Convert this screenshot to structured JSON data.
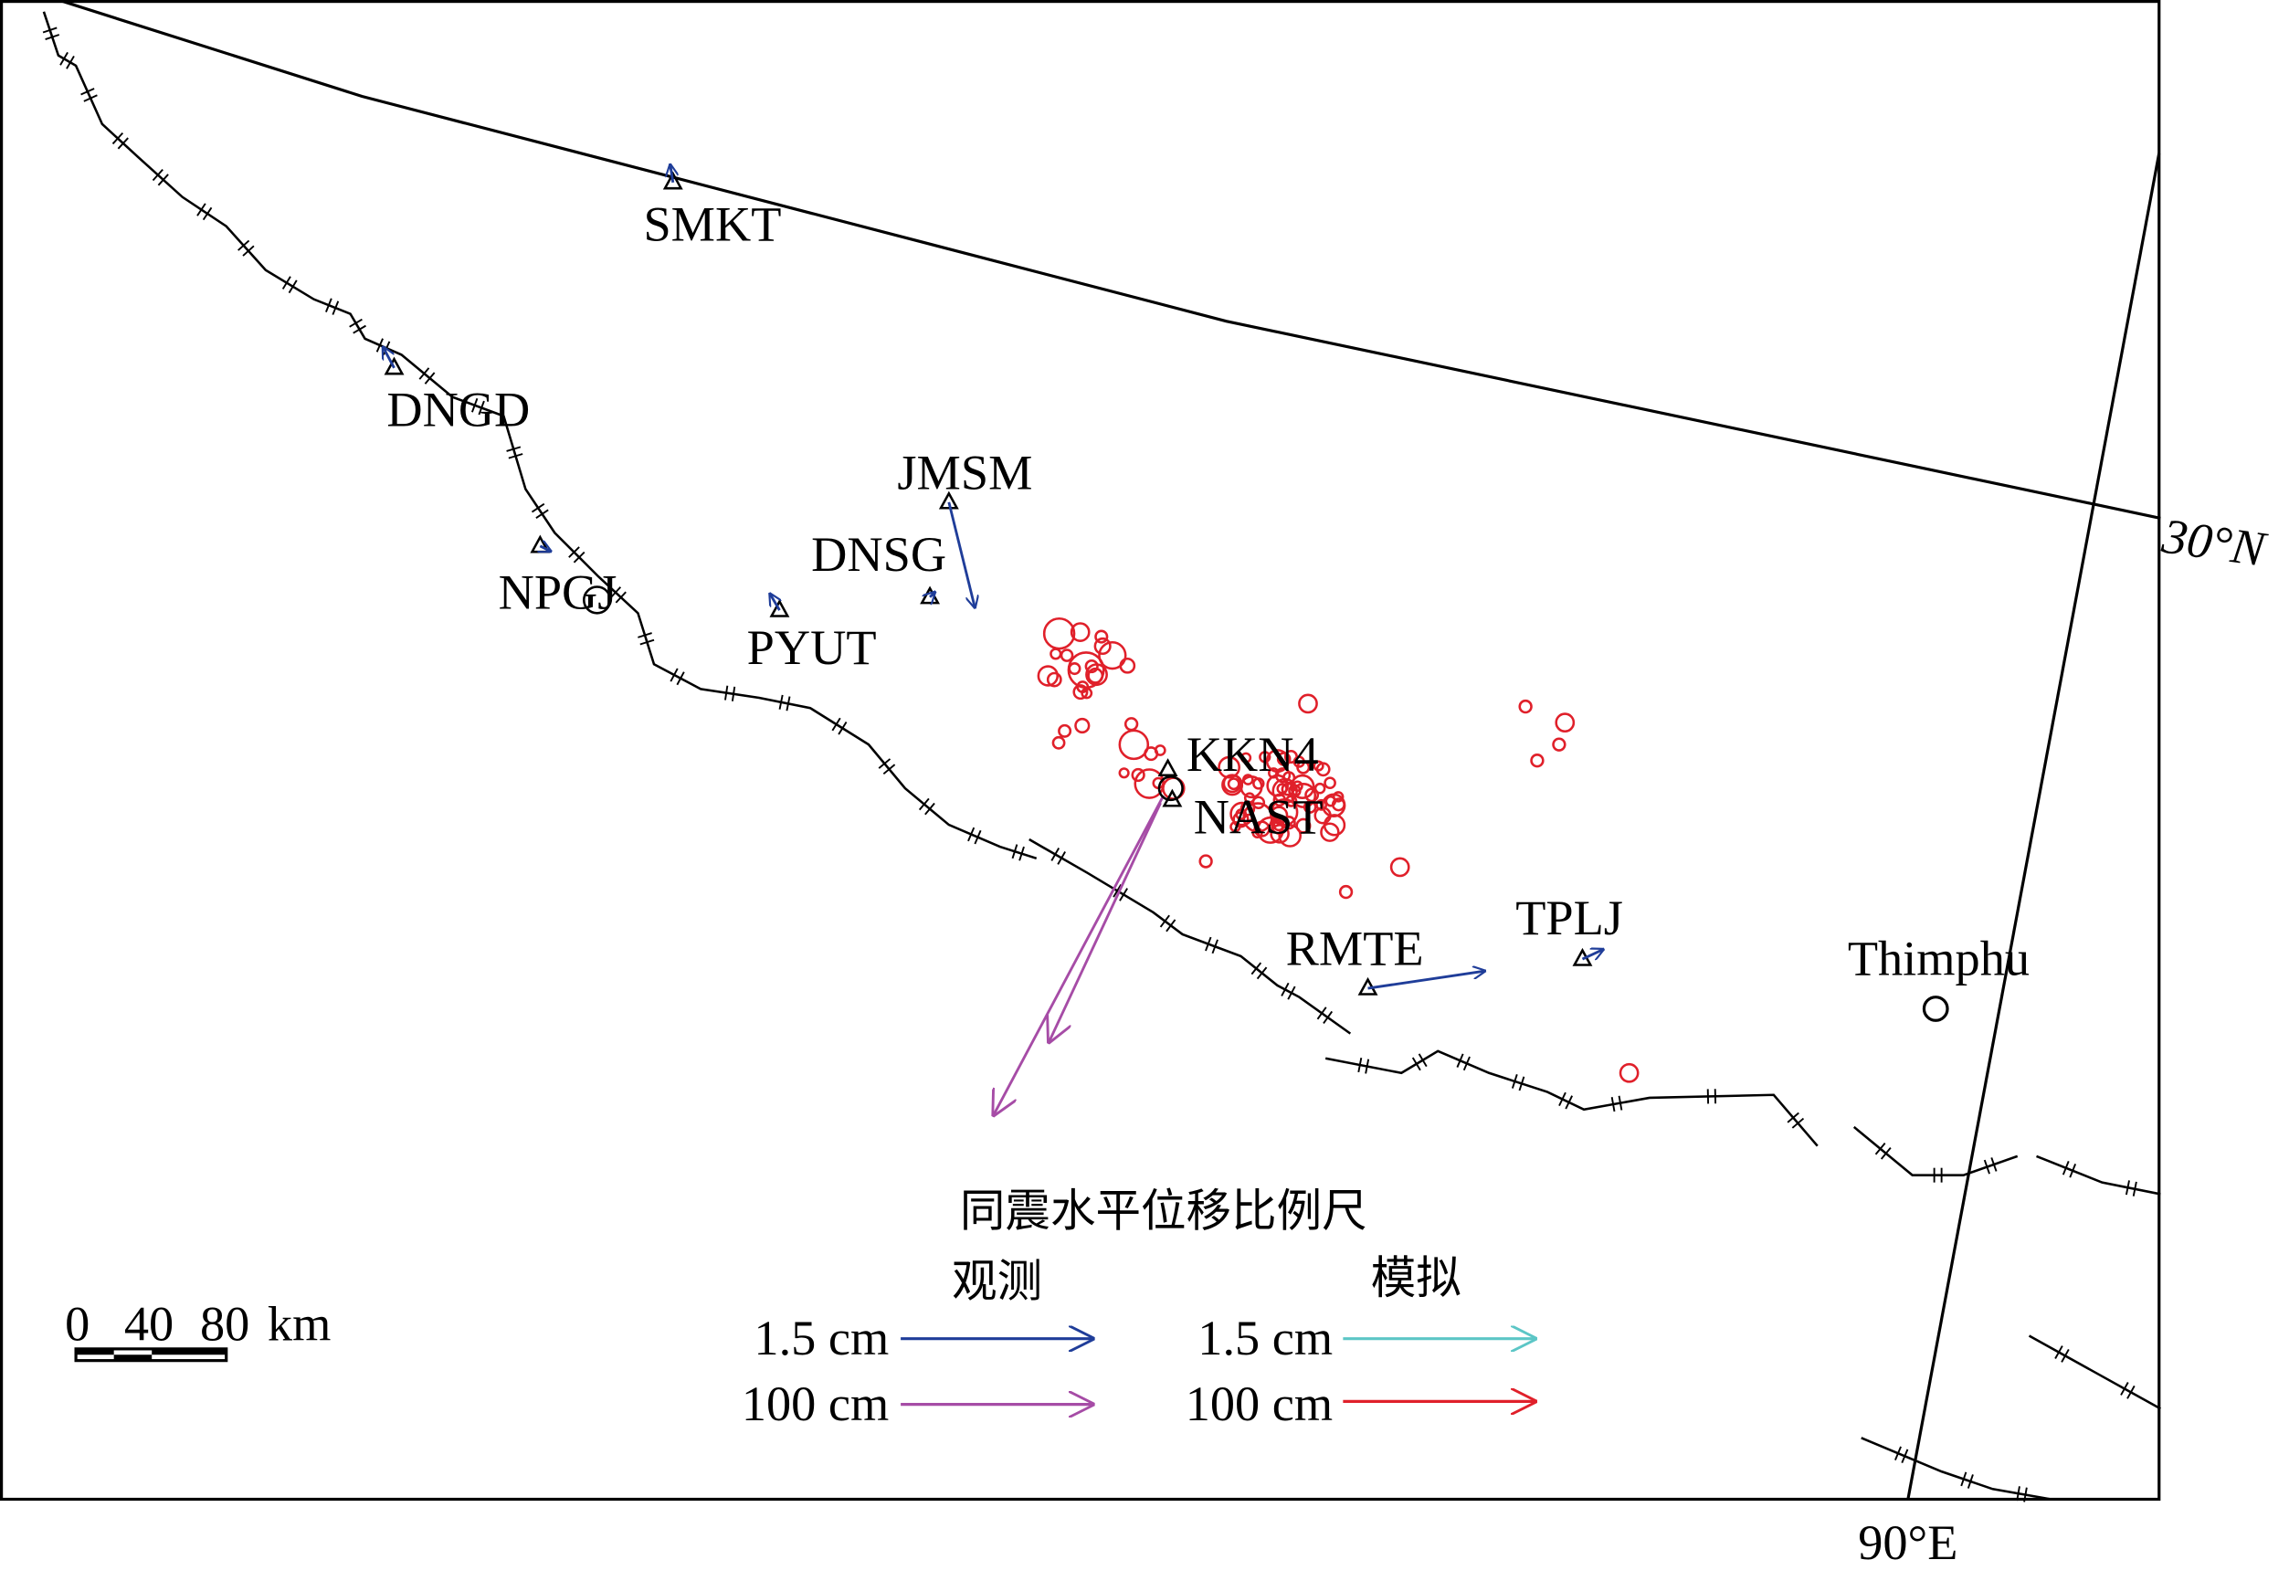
{
  "graticule": {
    "lat": "30°N",
    "lon": "90°E"
  },
  "stations": [
    {
      "label": "SMKT"
    },
    {
      "label": "DNGD"
    },
    {
      "label": "NPGJ"
    },
    {
      "label": "PYUT"
    },
    {
      "label": "DNSG"
    },
    {
      "label": "JMSM"
    },
    {
      "label": "KKN4"
    },
    {
      "label": "NAST"
    },
    {
      "label": "RMTE"
    },
    {
      "label": "TPLJ"
    }
  ],
  "cities": [
    {
      "label": "Thimphu"
    }
  ],
  "legend": {
    "title": "同震水平位移比例尺",
    "observed": "观测",
    "modeled": "模拟",
    "rows": [
      {
        "observed": "1.5 cm",
        "modeled": "1.5 cm"
      },
      {
        "observed": "100 cm",
        "modeled": "100 cm"
      }
    ]
  },
  "scale_bar": {
    "ticks": [
      "0",
      "40",
      "80"
    ],
    "unit": "km"
  }
}
